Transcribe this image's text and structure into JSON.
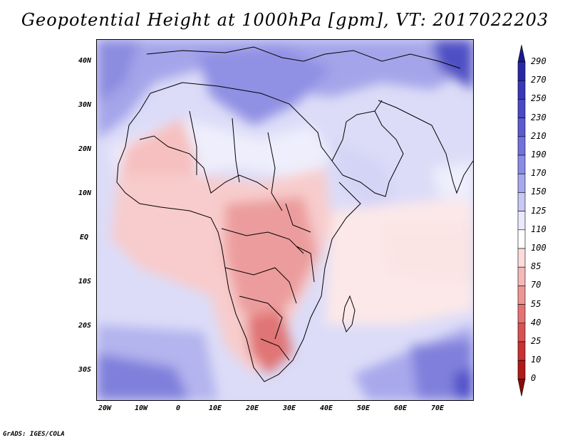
{
  "title": "Geopotential Height at 1000hPa [gpm], VT: 2017022203",
  "credit": "GrADS: IGES/COLA",
  "y_axis_labels": [
    "40N",
    "30N",
    "20N",
    "10N",
    "EQ",
    "10S",
    "20S",
    "30S"
  ],
  "x_axis_labels": [
    "20W",
    "10W",
    "0",
    "10E",
    "20E",
    "30E",
    "40E",
    "50E",
    "60E",
    "70E"
  ],
  "colorbar": {
    "labels": [
      "290",
      "270",
      "250",
      "230",
      "210",
      "190",
      "170",
      "150",
      "125",
      "110",
      "100",
      "85",
      "70",
      "55",
      "40",
      "25",
      "10",
      "0"
    ],
    "colors": [
      "#1a1a8c",
      "#2828a6",
      "#3838b8",
      "#4a4ac4",
      "#5c5cd0",
      "#7272dc",
      "#8c8ce6",
      "#a8a8ee",
      "#c8c8f6",
      "#eaeafc",
      "#ffffff",
      "#fbdcdc",
      "#f5b8b8",
      "#ee9696",
      "#e47474",
      "#d85252",
      "#c83232",
      "#b01a1a",
      "#8c0a0a"
    ]
  },
  "map": {
    "region": "Africa, Middle East and Western Indian Ocean",
    "lon_range": [
      -25,
      80
    ],
    "lat_range": [
      -37,
      45
    ]
  }
}
